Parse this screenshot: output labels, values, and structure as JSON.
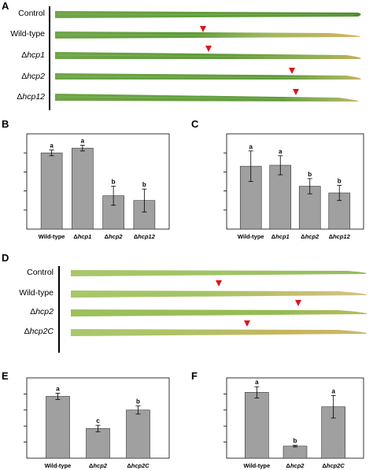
{
  "figure": {
    "panel_labels": [
      "A",
      "B",
      "C",
      "D",
      "E",
      "F"
    ],
    "panel_a": {
      "rows": [
        {
          "prefix": "",
          "label": "Control",
          "italic": false
        },
        {
          "prefix": "",
          "label": "Wild-type",
          "italic": false
        },
        {
          "prefix": "Δ",
          "label": "hcp1",
          "italic": true
        },
        {
          "prefix": "Δ",
          "label": "hcp2",
          "italic": true
        },
        {
          "prefix": "Δ",
          "label": "hcp12",
          "italic": true
        }
      ]
    },
    "panel_d": {
      "rows": [
        {
          "prefix": "",
          "label": "Control",
          "italic": false
        },
        {
          "prefix": "",
          "label": "Wild-type",
          "italic": false
        },
        {
          "prefix": "Δ",
          "label": "hcp2",
          "italic": true
        },
        {
          "prefix": "Δ",
          "label": "hcp2C",
          "italic": true
        }
      ]
    },
    "colors": {
      "leaf_green": "#5f9a3a",
      "leaf_light": "#a6c66a",
      "leaf_yellow": "#d9b45a",
      "arrow_red": "#e0121b",
      "bar_gray": "#a0a0a0"
    }
  },
  "chart_data": [
    {
      "panel": "B",
      "type": "bar",
      "categories": [
        "Wild-type",
        "Δhcp1",
        "Δhcp2",
        "Δhcp12"
      ],
      "italic_categories": [
        false,
        true,
        true,
        true
      ],
      "values": [
        0.8,
        0.85,
        0.35,
        0.3
      ],
      "errors": [
        0.03,
        0.03,
        0.1,
        0.12
      ],
      "significance": [
        "a",
        "a",
        "b",
        "b"
      ],
      "ylim": [
        0,
        1
      ],
      "yticks": [
        0.2,
        0.4,
        0.6,
        0.8
      ],
      "xlabel": "",
      "ylabel": ""
    },
    {
      "panel": "C",
      "type": "bar",
      "categories": [
        "Wild-type",
        "Δhcp1",
        "Δhcp2",
        "Δhcp12"
      ],
      "italic_categories": [
        false,
        true,
        true,
        true
      ],
      "values": [
        0.66,
        0.67,
        0.45,
        0.38
      ],
      "errors": [
        0.16,
        0.1,
        0.08,
        0.08
      ],
      "significance": [
        "a",
        "a",
        "b",
        "b"
      ],
      "ylim": [
        0,
        1
      ],
      "yticks": [
        0.2,
        0.4,
        0.6,
        0.8
      ],
      "xlabel": "",
      "ylabel": ""
    },
    {
      "panel": "E",
      "type": "bar",
      "categories": [
        "Wild-type",
        "Δhcp2",
        "Δhcp2C"
      ],
      "italic_categories": [
        false,
        true,
        true
      ],
      "values": [
        0.77,
        0.37,
        0.6
      ],
      "errors": [
        0.04,
        0.04,
        0.05
      ],
      "significance": [
        "a",
        "c",
        "b"
      ],
      "ylim": [
        0,
        1
      ],
      "yticks": [
        0.2,
        0.4,
        0.6,
        0.8
      ],
      "xlabel": "",
      "ylabel": ""
    },
    {
      "panel": "F",
      "type": "bar",
      "categories": [
        "Wild-type",
        "Δhcp2",
        "Δhcp2C"
      ],
      "italic_categories": [
        false,
        true,
        true
      ],
      "values": [
        0.82,
        0.15,
        0.64
      ],
      "errors": [
        0.07,
        0.01,
        0.14
      ],
      "significance": [
        "a",
        "b",
        "a"
      ],
      "ylim": [
        0,
        1
      ],
      "yticks": [
        0.2,
        0.4,
        0.6,
        0.8
      ],
      "xlabel": "",
      "ylabel": ""
    }
  ]
}
